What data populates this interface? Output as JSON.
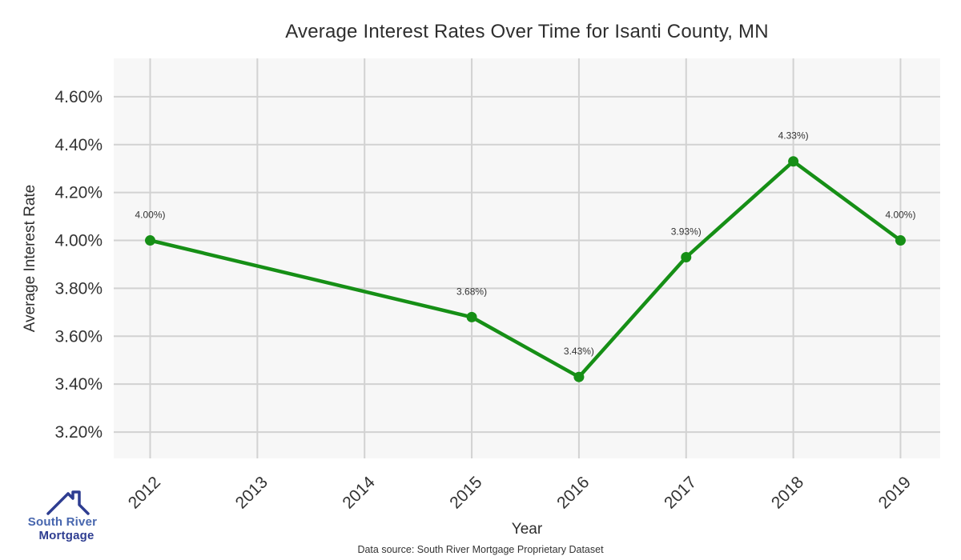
{
  "chart_data": {
    "type": "line",
    "title": "Average Interest Rates Over Time for Isanti County, MN",
    "xlabel": "Year",
    "ylabel": "Average Interest Rate",
    "series": [
      {
        "name": "Average Interest Rate",
        "x": [
          2012,
          2015,
          2016,
          2017,
          2018,
          2019
        ],
        "values": [
          4.0,
          3.68,
          3.43,
          3.93,
          4.33,
          4.0
        ],
        "point_labels": [
          "4.00%)",
          "3.68%)",
          "3.43%)",
          "3.93%)",
          "4.33%)",
          "4.00%)"
        ],
        "color": "#168f16"
      }
    ],
    "x_ticks": [
      "2012",
      "2013",
      "2014",
      "2015",
      "2016",
      "2017",
      "2018",
      "2019"
    ],
    "x_tick_values": [
      2012,
      2013,
      2014,
      2015,
      2016,
      2017,
      2018,
      2019
    ],
    "y_ticks": [
      "4.60%",
      "4.40%",
      "4.20%",
      "4.00%",
      "3.80%",
      "3.60%",
      "3.40%",
      "3.20%"
    ],
    "y_tick_values": [
      4.6,
      4.4,
      4.2,
      4.0,
      3.8,
      3.6,
      3.4,
      3.2
    ],
    "xlim": [
      2011.66,
      2019.37
    ],
    "ylim": [
      3.09,
      4.76
    ],
    "grid": true,
    "legend_position": "none",
    "plot_bg": "#f7f7f7",
    "grid_color": "#d2d2d2",
    "tick_color": "#333333",
    "annotation_color": "#333333"
  },
  "footer": {
    "source_text": "Data source: South River Mortgage Proprietary Dataset"
  },
  "logo": {
    "line1": "South River",
    "line2": "Mortgage",
    "line1_color": "#4766ae",
    "line2_color": "#2e3d91",
    "icon_color": "#2e3d91"
  }
}
